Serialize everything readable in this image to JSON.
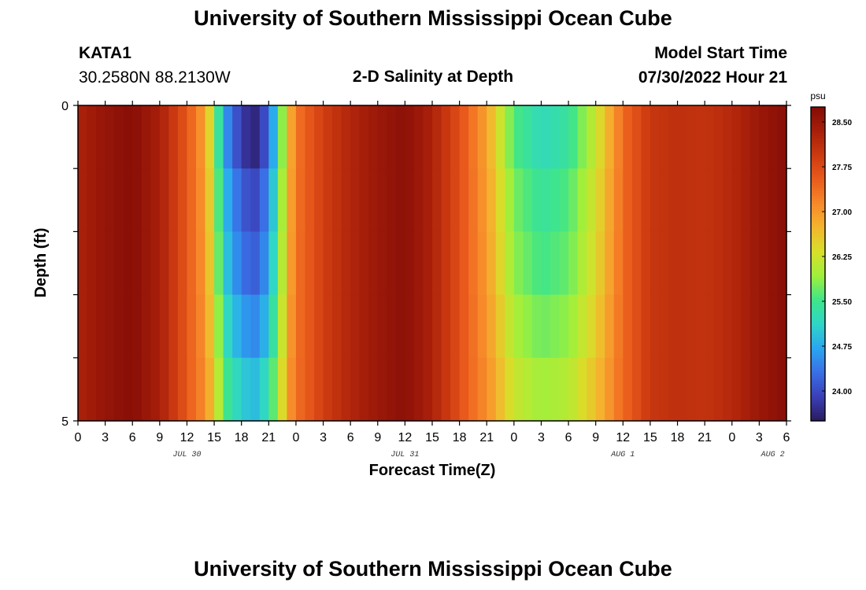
{
  "header": {
    "title": "University of Southern Mississippi Ocean Cube",
    "station": "KATA1",
    "coords": "30.2580N  88.2130W",
    "subtitle": "2-D Salinity at Depth",
    "model_start_label": "Model Start Time",
    "model_start_value": "07/30/2022 Hour 21"
  },
  "footer": {
    "title": "University of Southern Mississippi Ocean Cube"
  },
  "colors": {
    "ramp": [
      "#2a1b5e",
      "#3b3fb8",
      "#3a6fe6",
      "#2aa6f0",
      "#2fd6c8",
      "#3fe58a",
      "#9ef03c",
      "#d7e02a",
      "#f4b52e",
      "#f7892a",
      "#ea5b1c",
      "#cc3a10",
      "#a81f0a",
      "#830c06"
    ]
  },
  "chart_data": {
    "type": "heatmap",
    "title": "2-D Salinity at Depth",
    "xlabel": "Forecast Time(Z)",
    "ylabel": "Depth (ft)",
    "ylim": [
      0,
      5
    ],
    "y_ticks": [
      "0",
      "5"
    ],
    "x_tick_labels": [
      "0",
      "3",
      "6",
      "9",
      "12",
      "15",
      "18",
      "21",
      "0",
      "3",
      "6",
      "9",
      "12",
      "15",
      "18",
      "21",
      "0",
      "3",
      "6",
      "9",
      "12",
      "15",
      "18",
      "21",
      "0",
      "3",
      "6"
    ],
    "date_labels": [
      {
        "label": "JUL 30",
        "tick_index": 4
      },
      {
        "label": "JUL 31",
        "tick_index": 12
      },
      {
        "label": "AUG 1",
        "tick_index": 20
      },
      {
        "label": "AUG 2",
        "tick_index": 25.5
      }
    ],
    "colorbar": {
      "unit": "psu",
      "min": 23.5,
      "max": 28.75,
      "ticks": [
        "28.50",
        "27.75",
        "27.00",
        "26.25",
        "25.50",
        "24.75",
        "24.00"
      ]
    },
    "depth_rows": 5,
    "surface_profile_hours": [
      0,
      3,
      6,
      9,
      12,
      14,
      15,
      16,
      17,
      18,
      19,
      20,
      21,
      22,
      23,
      24,
      27,
      30,
      33,
      36,
      39,
      42,
      45,
      48,
      51,
      54,
      57,
      60,
      63,
      66,
      69,
      72,
      75,
      78
    ],
    "surface_profile_psu": [
      28.3,
      28.55,
      28.7,
      28.35,
      27.6,
      26.9,
      26.0,
      24.8,
      24.2,
      23.9,
      23.6,
      23.7,
      24.3,
      25.2,
      26.5,
      27.3,
      27.9,
      28.25,
      28.5,
      28.65,
      28.3,
      27.7,
      26.9,
      25.6,
      25.2,
      25.4,
      26.2,
      27.4,
      28.0,
      28.1,
      28.05,
      28.2,
      28.5,
      28.7
    ],
    "row_offsets": {
      "rows_psu_shift": [
        0,
        0.35,
        0.55,
        0.9,
        1.3
      ],
      "min_clip_rows": [
        23.5,
        23.8,
        24.1,
        24.3,
        24.9
      ]
    }
  }
}
